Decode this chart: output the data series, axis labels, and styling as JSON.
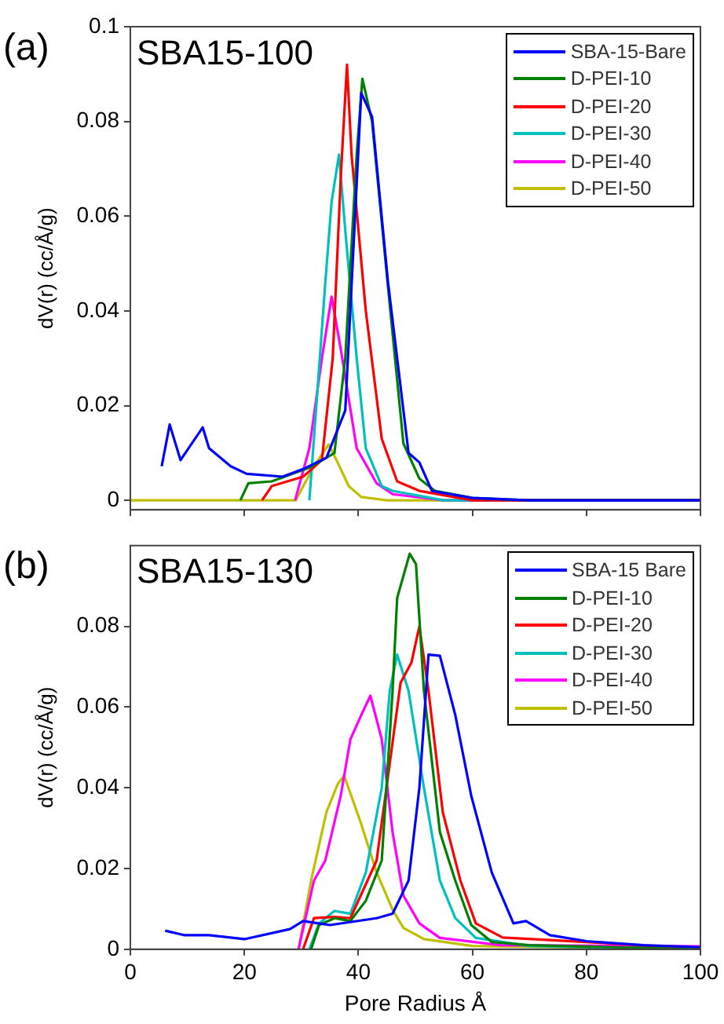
{
  "chart_data": [
    {
      "type": "line",
      "annotations": [
        "(a)",
        "SBA15-100"
      ],
      "ylabel": "dV(r) (cc/Å/g)",
      "xlim": [
        0,
        100
      ],
      "xticks": [
        0,
        20,
        40,
        60,
        80,
        100
      ],
      "ylim": [
        -0.002,
        0.1
      ],
      "yticks": [
        0,
        0.02,
        0.04,
        0.06,
        0.08,
        0.1
      ],
      "tick_labels": "y",
      "legend": "top right",
      "series": [
        {
          "name": "SBA-15-Bare",
          "color": "#0000ff",
          "x": [
            5.5,
            6.9,
            8.8,
            12.7,
            13.8,
            17.6,
            20.4,
            26.7,
            30.3,
            34.4,
            37.7,
            40.5,
            42.4,
            45.2,
            48.8,
            50.7,
            52.9,
            60,
            70,
            100
          ],
          "values": [
            0.0072,
            0.016,
            0.0085,
            0.0154,
            0.011,
            0.0072,
            0.0056,
            0.005,
            0.0066,
            0.009,
            0.019,
            0.086,
            0.081,
            0.046,
            0.01,
            0.008,
            0.002,
            0.0005,
            0,
            0
          ]
        },
        {
          "name": "D-PEI-10",
          "color": "#008000",
          "x": [
            19.3,
            20.7,
            24.8,
            31.4,
            35.8,
            37.7,
            39.7,
            40.7,
            42.4,
            45.2,
            47.9,
            50.7,
            53.4,
            60,
            70,
            100
          ],
          "values": [
            0,
            0.0036,
            0.004,
            0.0069,
            0.01,
            0.03,
            0.073,
            0.089,
            0.08,
            0.045,
            0.012,
            0.0046,
            0.002,
            0.0005,
            0,
            0
          ]
        },
        {
          "name": "D-PEI-20",
          "color": "#ff0000",
          "x": [
            23.1,
            24.8,
            30.3,
            33.6,
            35.5,
            36.9,
            38,
            38.8,
            41.3,
            44.1,
            46.8,
            50.7,
            60,
            100
          ],
          "values": [
            0,
            0.003,
            0.005,
            0.0085,
            0.03,
            0.068,
            0.092,
            0.073,
            0.04,
            0.013,
            0.004,
            0.002,
            0,
            0
          ]
        },
        {
          "name": "D-PEI-30",
          "color": "#00bfbf",
          "x": [
            31.4,
            32.2,
            34.2,
            35.3,
            36.6,
            37.7,
            39.7,
            41.3,
            44.1,
            46,
            55,
            100
          ],
          "values": [
            0,
            0.013,
            0.046,
            0.063,
            0.073,
            0.057,
            0.03,
            0.011,
            0.003,
            0.002,
            0,
            0
          ]
        },
        {
          "name": "D-PEI-40",
          "color": "#ff00ff",
          "x": [
            28.9,
            31.4,
            33.6,
            35.3,
            36.9,
            39.7,
            43.2,
            46,
            55,
            100
          ],
          "values": [
            0,
            0.011,
            0.03,
            0.043,
            0.032,
            0.011,
            0.0036,
            0.0013,
            0,
            0
          ]
        },
        {
          "name": "D-PEI-50",
          "color": "#bfbf00",
          "x": [
            0,
            29,
            32.2,
            34.8,
            36.4,
            38.3,
            40.5,
            45,
            100
          ],
          "values": [
            0,
            0,
            0.0072,
            0.0118,
            0.0079,
            0.003,
            0.0007,
            0,
            0
          ]
        }
      ]
    },
    {
      "type": "line",
      "annotations": [
        "(b)",
        "SBA15-130"
      ],
      "xlabel": "Pore Radius Å",
      "ylabel": "dV(r) (cc/Å/g)",
      "xlim": [
        0,
        100
      ],
      "xticks": [
        0,
        20,
        40,
        60,
        80,
        100
      ],
      "ylim": [
        0,
        0.1
      ],
      "yticks": [
        0,
        0.02,
        0.04,
        0.06,
        0.08
      ],
      "legend": "top right",
      "series": [
        {
          "name": "SBA-15 Bare",
          "color": "#0000ff",
          "x": [
            6.1,
            9.4,
            13.8,
            20,
            28,
            30.3,
            35,
            43.2,
            46,
            48.8,
            50.7,
            52.3,
            54.3,
            57,
            59.8,
            63.4,
            67.2,
            69.4,
            73.6,
            80,
            90,
            100
          ],
          "values": [
            0.0046,
            0.0035,
            0.0035,
            0.0025,
            0.005,
            0.007,
            0.006,
            0.0077,
            0.0088,
            0.017,
            0.04,
            0.073,
            0.0727,
            0.058,
            0.038,
            0.019,
            0.0064,
            0.007,
            0.0035,
            0.002,
            0.001,
            0.0005
          ]
        },
        {
          "name": "D-PEI-10",
          "color": "#008000",
          "x": [
            31.7,
            33.1,
            35.8,
            38.6,
            41.3,
            44.1,
            46,
            46.8,
            49,
            50.1,
            51.5,
            54.3,
            57,
            59.8,
            63.4,
            70,
            100
          ],
          "values": [
            0,
            0.006,
            0.0077,
            0.007,
            0.012,
            0.022,
            0.064,
            0.087,
            0.098,
            0.0954,
            0.064,
            0.029,
            0.017,
            0.006,
            0.0018,
            0.001,
            0
          ]
        },
        {
          "name": "D-PEI-20",
          "color": "#ff0000",
          "x": [
            30.3,
            32.2,
            35.8,
            38.6,
            43.2,
            45.5,
            47.4,
            49.3,
            50.7,
            52.3,
            54.8,
            57.9,
            60.6,
            65.3,
            80,
            100
          ],
          "values": [
            0,
            0.0077,
            0.008,
            0.0077,
            0.022,
            0.046,
            0.066,
            0.071,
            0.08,
            0.064,
            0.034,
            0.017,
            0.0064,
            0.0029,
            0.0018,
            0
          ]
        },
        {
          "name": "D-PEI-30",
          "color": "#00bfbf",
          "x": [
            31.4,
            33.1,
            35.8,
            38.6,
            41.3,
            44.1,
            45.5,
            46.8,
            48.8,
            51.5,
            54.3,
            57,
            60.6,
            70,
            100
          ],
          "values": [
            0,
            0.0064,
            0.0095,
            0.0088,
            0.019,
            0.04,
            0.064,
            0.073,
            0.064,
            0.04,
            0.017,
            0.0077,
            0.0028,
            0.0008,
            0
          ]
        },
        {
          "name": "D-PEI-40",
          "color": "#ff00ff",
          "x": [
            29.5,
            32.2,
            34.2,
            36.9,
            38.6,
            40.5,
            42.1,
            44.1,
            46,
            47.9,
            50.7,
            54.3,
            65,
            100
          ],
          "values": [
            0,
            0.017,
            0.022,
            0.038,
            0.052,
            0.058,
            0.0628,
            0.052,
            0.029,
            0.0133,
            0.0064,
            0.0028,
            0.001,
            0.0007
          ]
        },
        {
          "name": "D-PEI-50",
          "color": "#bfbf00",
          "x": [
            29.5,
            31.7,
            34.4,
            36.4,
            37.5,
            40.5,
            43.2,
            46,
            47.9,
            51.5,
            60,
            100
          ],
          "values": [
            0,
            0.017,
            0.034,
            0.041,
            0.043,
            0.031,
            0.019,
            0.0098,
            0.0053,
            0.0025,
            0.0008,
            0
          ]
        }
      ]
    }
  ]
}
